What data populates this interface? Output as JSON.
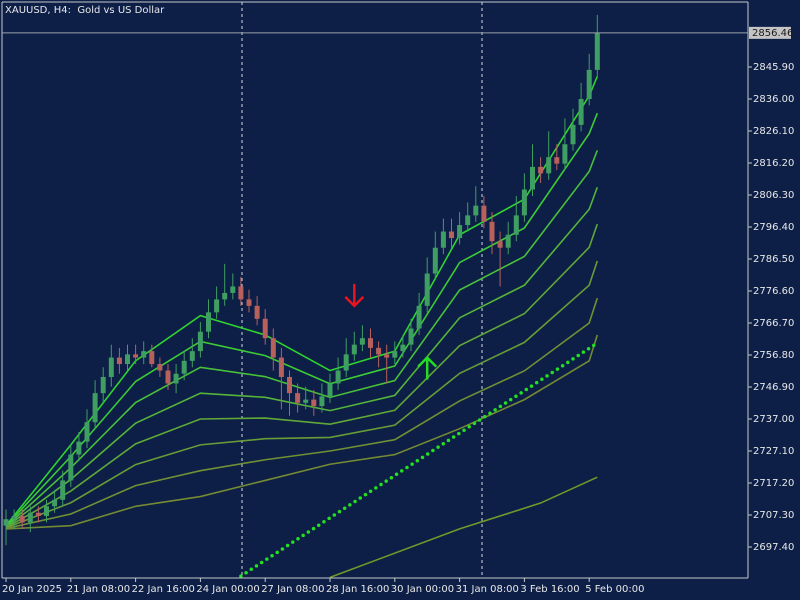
{
  "chart_data": {
    "type": "candlestick",
    "title": "XAUUSD, H4:  Gold vs US Dollar",
    "categories": [
      "20 Jan 2025",
      null,
      null,
      null,
      null,
      null,
      null,
      null,
      "21 Jan 08:00",
      null,
      null,
      null,
      null,
      null,
      null,
      null,
      "22 Jan 16:00",
      null,
      null,
      null,
      null,
      null,
      null,
      null,
      "24 Jan 00:00",
      null,
      null,
      null,
      null,
      null,
      null,
      null,
      "27 Jan 08:00",
      null,
      null,
      null,
      null,
      null,
      null,
      null,
      "28 Jan 16:00",
      null,
      null,
      null,
      null,
      null,
      null,
      null,
      "30 Jan 00:00",
      null,
      null,
      null,
      null,
      null,
      null,
      null,
      "31 Jan 08:00",
      null,
      null,
      null,
      null,
      null,
      null,
      null,
      "3 Feb 16:00",
      null,
      null,
      null,
      null,
      null,
      null,
      null,
      "5 Feb 00:00",
      null
    ],
    "open": [
      2704,
      2706,
      2707,
      2705,
      2708,
      2707,
      2710,
      2712,
      2718,
      2726,
      2730,
      2736,
      2745,
      2750,
      2756,
      2754,
      2757,
      2756,
      2758,
      2754,
      2752,
      2748,
      2751,
      2755,
      2758,
      2764,
      2770,
      2774,
      2776,
      2778,
      2774,
      2772,
      2768,
      2762,
      2756,
      2750,
      2745,
      2742,
      2743,
      2741,
      2744,
      2748,
      2752,
      2757,
      2760,
      2762,
      2759,
      2757,
      2756,
      2758,
      2760,
      2765,
      2772,
      2782,
      2790,
      2795,
      2793,
      2797,
      2800,
      2803,
      2798,
      2792,
      2790,
      2794,
      2800,
      2808,
      2815,
      2813,
      2818,
      2816,
      2822,
      2828,
      2836,
      2845
    ],
    "high": [
      2709,
      2709,
      2709,
      2710,
      2710,
      2712,
      2715,
      2721,
      2729,
      2733,
      2740,
      2749,
      2753,
      2760,
      2759,
      2760,
      2760,
      2761,
      2760,
      2756,
      2754,
      2754,
      2758,
      2762,
      2767,
      2774,
      2778,
      2785,
      2782,
      2781,
      2777,
      2775,
      2771,
      2765,
      2759,
      2752,
      2748,
      2747,
      2746,
      2748,
      2751,
      2756,
      2762,
      2764,
      2766,
      2765,
      2761,
      2760,
      2761,
      2763,
      2768,
      2776,
      2787,
      2795,
      2799,
      2799,
      2801,
      2804,
      2809,
      2806,
      2801,
      2795,
      2798,
      2806,
      2813,
      2822,
      2818,
      2826,
      2822,
      2830,
      2833,
      2841,
      2850,
      2862
    ],
    "low": [
      2698,
      2703,
      2703,
      2702,
      2705,
      2705,
      2708,
      2710,
      2716,
      2724,
      2728,
      2734,
      2742,
      2747,
      2751,
      2752,
      2754,
      2754,
      2753,
      2750,
      2746,
      2745,
      2749,
      2753,
      2756,
      2762,
      2768,
      2772,
      2774,
      2772,
      2770,
      2766,
      2760,
      2752,
      2740,
      2738,
      2739,
      2740,
      2738,
      2739,
      2742,
      2746,
      2750,
      2755,
      2758,
      2756,
      2753,
      2748,
      2754,
      2756,
      2758,
      2763,
      2770,
      2780,
      2788,
      2790,
      2791,
      2795,
      2798,
      2796,
      2788,
      2778,
      2788,
      2792,
      2798,
      2806,
      2810,
      2811,
      2814,
      2814,
      2820,
      2826,
      2834,
      2843
    ],
    "close": [
      2706,
      2707,
      2705,
      2708,
      2707,
      2710,
      2712,
      2718,
      2726,
      2730,
      2736,
      2745,
      2750,
      2756,
      2754,
      2757,
      2756,
      2758,
      2754,
      2752,
      2748,
      2751,
      2755,
      2758,
      2764,
      2770,
      2774,
      2776,
      2778,
      2774,
      2772,
      2768,
      2762,
      2756,
      2750,
      2745,
      2742,
      2743,
      2741,
      2744,
      2748,
      2752,
      2757,
      2760,
      2762,
      2759,
      2757,
      2756,
      2758,
      2760,
      2765,
      2772,
      2782,
      2790,
      2795,
      2793,
      2797,
      2800,
      2803,
      2798,
      2792,
      2790,
      2794,
      2800,
      2808,
      2815,
      2813,
      2818,
      2816,
      2822,
      2828,
      2836,
      2845,
      2856.46
    ],
    "up_color": "#3f9e62",
    "down_color": "#b8605c",
    "ylim": [
      2687.81,
      2866.01
    ],
    "yticks": [
      {
        "value": 2697.4,
        "label": "2697.40"
      },
      {
        "value": 2707.3,
        "label": "2707.30"
      },
      {
        "value": 2717.2,
        "label": "2717.20"
      },
      {
        "value": 2727.1,
        "label": "2727.10"
      },
      {
        "value": 2737,
        "label": "2737.00"
      },
      {
        "value": 2746.9,
        "label": "2746.90"
      },
      {
        "value": 2756.8,
        "label": "2756.80"
      },
      {
        "value": 2766.7,
        "label": "2766.70"
      },
      {
        "value": 2776.6,
        "label": "2776.60"
      },
      {
        "value": 2786.5,
        "label": "2786.50"
      },
      {
        "value": 2796.4,
        "label": "2796.40"
      },
      {
        "value": 2806.3,
        "label": "2806.30"
      },
      {
        "value": 2816.2,
        "label": "2816.20"
      },
      {
        "value": 2826.1,
        "label": "2826.10"
      },
      {
        "value": 2836,
        "label": "2836.00"
      },
      {
        "value": 2845.9,
        "label": "2845.90"
      }
    ],
    "current_price": 2856.46,
    "lines": [
      {
        "color": "#2fd42f",
        "x": [
          0,
          8,
          16,
          24,
          32,
          40,
          48,
          56,
          64,
          72,
          73
        ],
        "values": [
          2704,
          2729,
          2755,
          2769,
          2763,
          2752,
          2758,
          2794,
          2805,
          2837,
          2843
        ]
      },
      {
        "color": "#3ccc35",
        "x": [
          0,
          8,
          16,
          24,
          32,
          40,
          48,
          56,
          64,
          72,
          73
        ],
        "values": [
          2703.9,
          2725.4,
          2748.6,
          2761,
          2756.6,
          2747.9,
          2753.4,
          2785.4,
          2796.1,
          2825.3,
          2831.6
        ]
      },
      {
        "color": "#48c03a",
        "x": [
          0,
          8,
          16,
          24,
          32,
          40,
          48,
          56,
          64,
          72,
          73
        ],
        "values": [
          2703.7,
          2721.9,
          2742.1,
          2753,
          2750.1,
          2743.7,
          2748.9,
          2776.9,
          2787.3,
          2813.6,
          2820.1
        ]
      },
      {
        "color": "#55b53a",
        "x": [
          0,
          8,
          16,
          24,
          32,
          40,
          48,
          56,
          64,
          72,
          73
        ],
        "values": [
          2703.6,
          2718.3,
          2735.7,
          2745,
          2743.7,
          2739.6,
          2744.3,
          2768.3,
          2778.4,
          2801.9,
          2808.7
        ]
      },
      {
        "color": "#5fa838",
        "x": [
          0,
          8,
          16,
          24,
          32,
          40,
          48,
          56,
          64,
          72,
          73
        ],
        "values": [
          2703.4,
          2714.7,
          2729.3,
          2737,
          2737.3,
          2735.4,
          2739.7,
          2759.7,
          2769.6,
          2790.1,
          2797.3
        ]
      },
      {
        "color": "#689c36",
        "x": [
          0,
          8,
          16,
          24,
          32,
          40,
          48,
          56,
          64,
          72,
          73
        ],
        "values": [
          2703.3,
          2711.1,
          2722.9,
          2729,
          2730.9,
          2731.3,
          2735.1,
          2751.1,
          2760.7,
          2778.4,
          2785.9
        ]
      },
      {
        "color": "#6f9134",
        "x": [
          0,
          8,
          16,
          24,
          32,
          40,
          48,
          56,
          64,
          72,
          73
        ],
        "values": [
          2703.1,
          2707.6,
          2716.4,
          2721,
          2724.4,
          2727.1,
          2730.6,
          2742.6,
          2751.9,
          2766.7,
          2774.4
        ]
      },
      {
        "color": "#748a32",
        "x": [
          0,
          8,
          16,
          24,
          32,
          40,
          48,
          56,
          64,
          72,
          73
        ],
        "values": [
          2703,
          2704,
          2710,
          2713,
          2718,
          2723,
          2726,
          2734,
          2743,
          2755,
          2763
        ]
      },
      {
        "color": "#6f9a2a",
        "x": [
          40,
          56,
          66,
          73
        ],
        "values": [
          2688,
          2703,
          2711,
          2719
        ]
      }
    ],
    "dotted_line": {
      "color": "#22e022",
      "x": [
        29,
        73
      ],
      "values": [
        2688.4,
        2760.5
      ]
    },
    "sell_signals": {
      "color": "#e8141e",
      "x": [
        43
      ],
      "values": [
        2772
      ]
    },
    "buy_signals": {
      "color": "#22dd22",
      "x": [
        52
      ],
      "values": [
        2756
      ]
    }
  }
}
